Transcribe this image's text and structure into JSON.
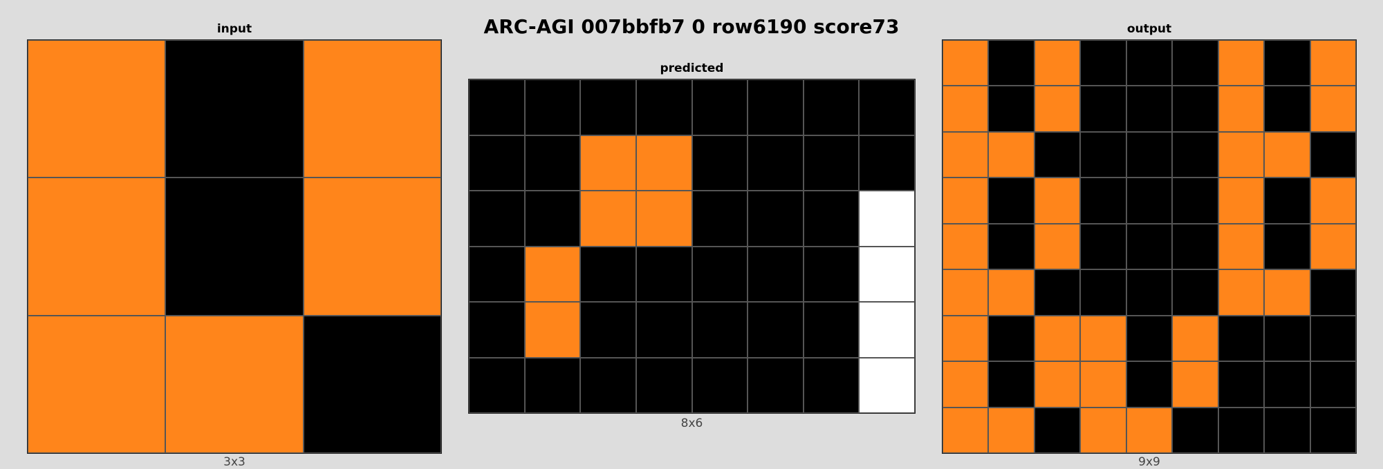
{
  "title": "ARC-AGI 007bbfb7 0 row6190 score73",
  "palette": {
    "0": "#000000",
    "7": "#ff851b",
    "w": "#ffffff"
  },
  "input": {
    "label": "input",
    "dims": "3x3",
    "rows": [
      [
        7,
        0,
        7
      ],
      [
        7,
        0,
        7
      ],
      [
        7,
        7,
        0
      ]
    ]
  },
  "predicted": {
    "label": "predicted",
    "dims": "8x6",
    "rows": [
      [
        0,
        0,
        0,
        0,
        0,
        0,
        0,
        0
      ],
      [
        0,
        0,
        7,
        7,
        0,
        0,
        0,
        0
      ],
      [
        0,
        0,
        7,
        7,
        0,
        0,
        0,
        "w"
      ],
      [
        0,
        7,
        0,
        0,
        0,
        0,
        0,
        "w"
      ],
      [
        0,
        7,
        0,
        0,
        0,
        0,
        0,
        "w"
      ],
      [
        0,
        0,
        0,
        0,
        0,
        0,
        0,
        "w"
      ]
    ]
  },
  "output": {
    "label": "output",
    "dims": "9x9",
    "rows": [
      [
        7,
        0,
        7,
        0,
        0,
        0,
        7,
        0,
        7
      ],
      [
        7,
        0,
        7,
        0,
        0,
        0,
        7,
        0,
        7
      ],
      [
        7,
        7,
        0,
        0,
        0,
        0,
        7,
        7,
        0
      ],
      [
        7,
        0,
        7,
        0,
        0,
        0,
        7,
        0,
        7
      ],
      [
        7,
        0,
        7,
        0,
        0,
        0,
        7,
        0,
        7
      ],
      [
        7,
        7,
        0,
        0,
        0,
        0,
        7,
        7,
        0
      ],
      [
        7,
        0,
        7,
        7,
        0,
        7,
        0,
        0,
        0
      ],
      [
        7,
        0,
        7,
        7,
        0,
        7,
        0,
        0,
        0
      ],
      [
        7,
        7,
        0,
        7,
        7,
        0,
        0,
        0,
        0
      ]
    ]
  }
}
